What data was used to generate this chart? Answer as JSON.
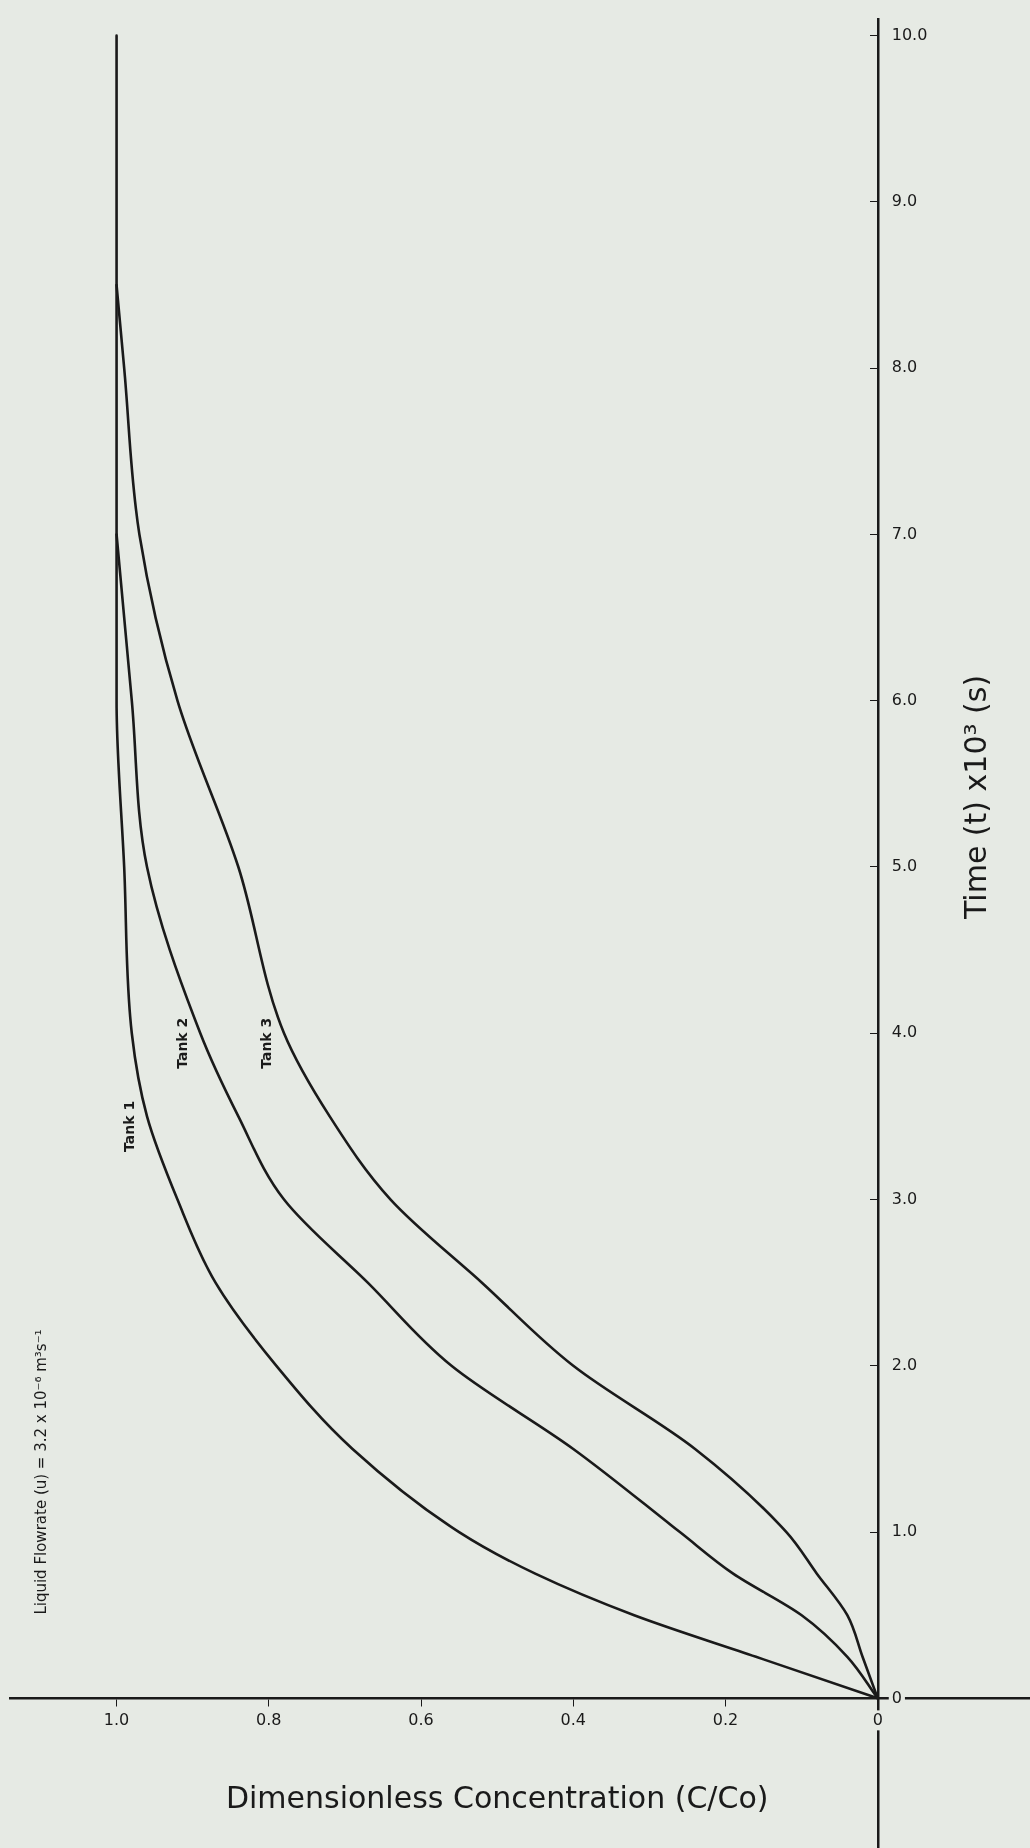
{
  "chart_data": {
    "type": "line",
    "xlabel": "Dimensionless Concentration (C/Co)",
    "ylabel": "Time (t) x10³ (s)",
    "xlim": [
      1.14,
      -0.2
    ],
    "ylim": [
      -0.9,
      10.1
    ],
    "xticks": [
      0,
      0.2,
      0.4,
      0.6,
      0.8,
      {
        "value": 1,
        "label": "1.0"
      }
    ],
    "yticks": [
      0,
      {
        "value": 1,
        "label": "1.0"
      },
      {
        "value": 2,
        "label": "2.0"
      },
      {
        "value": 3,
        "label": "3.0"
      },
      {
        "value": 4,
        "label": "4.0"
      },
      {
        "value": 5,
        "label": "5.0"
      },
      {
        "value": 6,
        "label": "6.0"
      },
      {
        "value": 7,
        "label": "7.0"
      },
      {
        "value": 8,
        "label": "8.0"
      },
      {
        "value": 9,
        "label": "9.0"
      },
      {
        "value": 10,
        "label": "10.0"
      }
    ],
    "grid": false,
    "legend": false,
    "marker": "none",
    "line_style": "solid",
    "series": [
      {
        "name": "Tank 1",
        "color": "#1a1a1a",
        "x": [
          0,
          0.16,
          0.32,
          0.45,
          0.55,
          0.69,
          0.79,
          0.87,
          0.92,
          0.96,
          0.98,
          0.99,
          1.0,
          1.0,
          1.0,
          1.0,
          1.0
        ],
        "values": [
          0,
          0.25,
          0.5,
          0.75,
          1,
          1.5,
          2,
          2.5,
          3,
          3.5,
          4,
          5,
          6,
          7,
          8,
          9,
          10
        ]
      },
      {
        "name": "Tank 2",
        "color": "#1a1a1a",
        "x": [
          0,
          0.04,
          0.1,
          0.19,
          0.26,
          0.4,
          0.56,
          0.67,
          0.78,
          0.84,
          0.89,
          0.96,
          0.98,
          1.0
        ],
        "values": [
          0,
          0.25,
          0.5,
          0.75,
          1,
          1.5,
          2,
          2.5,
          3,
          3.5,
          4,
          5,
          6,
          7
        ]
      },
      {
        "name": "Tank 3",
        "color": "#1a1a1a",
        "x": [
          0,
          0.02,
          0.04,
          0.08,
          0.12,
          0.24,
          0.4,
          0.52,
          0.64,
          0.72,
          0.78,
          0.84,
          0.92,
          0.97,
          0.99,
          1.0
        ],
        "values": [
          0,
          0.25,
          0.5,
          0.75,
          1,
          1.5,
          2,
          2.5,
          3,
          3.5,
          4,
          5,
          6,
          7,
          8,
          8.5
        ]
      }
    ],
    "annotations": [
      "Liquid Flowrate (u) = 3.2 x 10⁻⁶ m³s⁻¹"
    ]
  }
}
